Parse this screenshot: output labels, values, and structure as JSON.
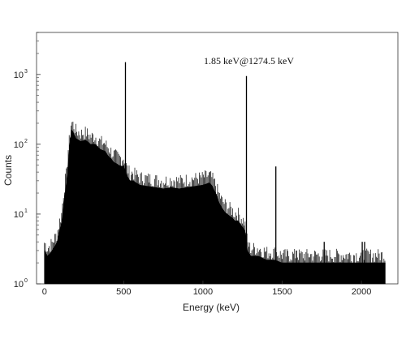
{
  "chart_data": {
    "type": "line",
    "xlabel": "Energy (keV)",
    "ylabel": "Counts",
    "xlim": [
      -50,
      2230
    ],
    "ylim": [
      1,
      4000
    ],
    "yscale": "log",
    "grid": false,
    "annotation": {
      "text": "1.85 keV@1274.5 keV",
      "x": 1274.5,
      "y": 1500
    },
    "x_ticks": [
      {
        "value": 0,
        "label": "0"
      },
      {
        "value": 500,
        "label": "500"
      },
      {
        "value": 1000,
        "label": "1000"
      },
      {
        "value": 1500,
        "label": "1500"
      },
      {
        "value": 2000,
        "label": "2000"
      }
    ],
    "y_ticks": [
      {
        "value": 1,
        "base": "10",
        "exp": "0"
      },
      {
        "value": 10,
        "base": "10",
        "exp": "1"
      },
      {
        "value": 100,
        "base": "10",
        "exp": "2"
      },
      {
        "value": 1000,
        "base": "10",
        "exp": "3"
      }
    ],
    "series": [
      {
        "values_x": [
          0,
          20,
          50,
          80,
          110,
          140,
          160,
          170,
          180,
          200,
          230,
          260,
          290,
          320,
          350,
          380,
          410,
          440,
          470,
          490,
          500,
          520,
          540,
          560,
          600,
          650,
          700,
          750,
          800,
          850,
          900,
          950,
          1000,
          1040,
          1060,
          1080,
          1100,
          1120,
          1150,
          1180,
          1200,
          1220,
          1240,
          1260,
          1270,
          1280,
          1300,
          1350,
          1400,
          1450,
          1500,
          1600,
          1700,
          1800,
          1900,
          2000,
          2100,
          2150
        ],
        "values_y": [
          3,
          2.5,
          3,
          4,
          8,
          30,
          100,
          160,
          150,
          120,
          110,
          115,
          100,
          100,
          85,
          80,
          65,
          55,
          50,
          48,
          50,
          35,
          30,
          30,
          26,
          25,
          24,
          23,
          24,
          23,
          24,
          25,
          26,
          28,
          25,
          20,
          15,
          12,
          10,
          9,
          8,
          8,
          7,
          6,
          5,
          3,
          2.5,
          2.5,
          2.2,
          2.2,
          2,
          2,
          2,
          2,
          2,
          2,
          2,
          2
        ]
      }
    ],
    "peaks": [
      {
        "x": 511,
        "y": 1500
      },
      {
        "x": 1274.5,
        "y": 950
      },
      {
        "x": 1460,
        "y": 48
      },
      {
        "x": 1590,
        "y": 3
      },
      {
        "x": 1765,
        "y": 4
      },
      {
        "x": 2005,
        "y": 4
      },
      {
        "x": 2020,
        "y": 4
      }
    ]
  }
}
